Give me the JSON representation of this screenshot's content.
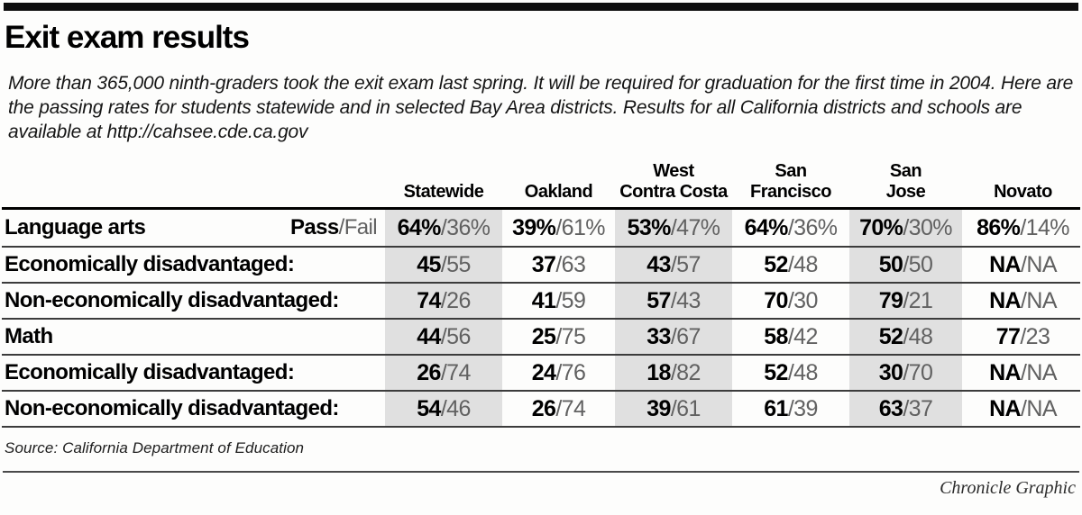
{
  "masthead": {
    "title": "Exit exam results"
  },
  "intro": "More than 365,000 ninth-graders took the exit exam last spring. It will be required for graduation for the first time in 2004. Here are the passing rates for students statewide and in selected Bay Area districts. Results for all California districts and schools are available at http://cahsee.cde.ca.gov",
  "table": {
    "pass_fail_note": {
      "pass": "Pass",
      "fail": "/Fail"
    },
    "columns": [
      {
        "label": "Statewide",
        "lines": [
          "Statewide"
        ],
        "shaded": true
      },
      {
        "label": "Oakland",
        "lines": [
          "Oakland"
        ],
        "shaded": false
      },
      {
        "label": "West Contra Costa",
        "lines": [
          "West",
          "Contra Costa"
        ],
        "shaded": true
      },
      {
        "label": "San Francisco",
        "lines": [
          "San",
          "Francisco"
        ],
        "shaded": false
      },
      {
        "label": "San Jose",
        "lines": [
          "San",
          "Jose"
        ],
        "shaded": true
      },
      {
        "label": "Novato",
        "lines": [
          "Novato"
        ],
        "shaded": false
      }
    ],
    "rows": [
      {
        "label": "Language arts",
        "cells": [
          {
            "pass": "64%",
            "fail": "/36%"
          },
          {
            "pass": "39%",
            "fail": "/61%"
          },
          {
            "pass": "53%",
            "fail": "/47%"
          },
          {
            "pass": "64%",
            "fail": "/36%"
          },
          {
            "pass": "70%",
            "fail": "/30%"
          },
          {
            "pass": "86%",
            "fail": "/14%"
          }
        ]
      },
      {
        "label": "Economically disadvantaged:",
        "cells": [
          {
            "pass": "45",
            "fail": "/55"
          },
          {
            "pass": "37",
            "fail": "/63"
          },
          {
            "pass": "43",
            "fail": "/57"
          },
          {
            "pass": "52",
            "fail": "/48"
          },
          {
            "pass": "50",
            "fail": "/50"
          },
          {
            "pass": "NA",
            "fail": "/NA"
          }
        ]
      },
      {
        "label": "Non-economically disadvantaged:",
        "cells": [
          {
            "pass": "74",
            "fail": "/26"
          },
          {
            "pass": "41",
            "fail": "/59"
          },
          {
            "pass": "57",
            "fail": "/43"
          },
          {
            "pass": "70",
            "fail": "/30"
          },
          {
            "pass": "79",
            "fail": "/21"
          },
          {
            "pass": "NA",
            "fail": "/NA"
          }
        ]
      },
      {
        "label": "Math",
        "cells": [
          {
            "pass": "44",
            "fail": "/56"
          },
          {
            "pass": "25",
            "fail": "/75"
          },
          {
            "pass": "33",
            "fail": "/67"
          },
          {
            "pass": "58",
            "fail": "/42"
          },
          {
            "pass": "52",
            "fail": "/48"
          },
          {
            "pass": "77",
            "fail": "/23"
          }
        ]
      },
      {
        "label": "Economically disadvantaged:",
        "cells": [
          {
            "pass": "26",
            "fail": "/74"
          },
          {
            "pass": "24",
            "fail": "/76"
          },
          {
            "pass": "18",
            "fail": "/82"
          },
          {
            "pass": "52",
            "fail": "/48"
          },
          {
            "pass": "30",
            "fail": "/70"
          },
          {
            "pass": "NA",
            "fail": "/NA"
          }
        ]
      },
      {
        "label": "Non-economically disadvantaged:",
        "cells": [
          {
            "pass": "54",
            "fail": "/46"
          },
          {
            "pass": "26",
            "fail": "/74"
          },
          {
            "pass": "39",
            "fail": "/61"
          },
          {
            "pass": "61",
            "fail": "/39"
          },
          {
            "pass": "63",
            "fail": "/37"
          },
          {
            "pass": "NA",
            "fail": "/NA"
          }
        ]
      }
    ]
  },
  "footer": {
    "source": "Source: California Department of Education",
    "credit": "Chronicle Graphic"
  },
  "colors": {
    "stripe": "#e0e0e0",
    "fail_text": "#616161",
    "header_rule": "#000000",
    "row_rule": "#3c3c3c",
    "top_bar": "#0e0e0e"
  },
  "chart_data": {
    "type": "table",
    "title": "Exit exam results",
    "columns": [
      "Statewide",
      "Oakland",
      "West Contra Costa",
      "San Francisco",
      "San Jose",
      "Novato"
    ],
    "value_format": "pass/fail percent of students",
    "na_label": "NA",
    "rows": [
      {
        "label": "Language arts",
        "pass": [
          64,
          39,
          53,
          64,
          70,
          86
        ],
        "fail": [
          36,
          61,
          47,
          36,
          30,
          14
        ]
      },
      {
        "label": "Economically disadvantaged:",
        "pass": [
          45,
          37,
          43,
          52,
          50,
          "NA"
        ],
        "fail": [
          55,
          63,
          57,
          48,
          50,
          "NA"
        ]
      },
      {
        "label": "Non-economically disadvantaged:",
        "pass": [
          74,
          41,
          57,
          70,
          79,
          "NA"
        ],
        "fail": [
          26,
          59,
          43,
          30,
          21,
          "NA"
        ]
      },
      {
        "label": "Math",
        "pass": [
          44,
          25,
          33,
          58,
          52,
          77
        ],
        "fail": [
          56,
          75,
          67,
          42,
          48,
          23
        ]
      },
      {
        "label": "Economically disadvantaged:",
        "pass": [
          26,
          24,
          18,
          52,
          30,
          "NA"
        ],
        "fail": [
          74,
          76,
          82,
          48,
          70,
          "NA"
        ]
      },
      {
        "label": "Non-economically disadvantaged:",
        "pass": [
          54,
          26,
          39,
          61,
          63,
          "NA"
        ],
        "fail": [
          46,
          74,
          61,
          39,
          37,
          "NA"
        ]
      }
    ]
  }
}
